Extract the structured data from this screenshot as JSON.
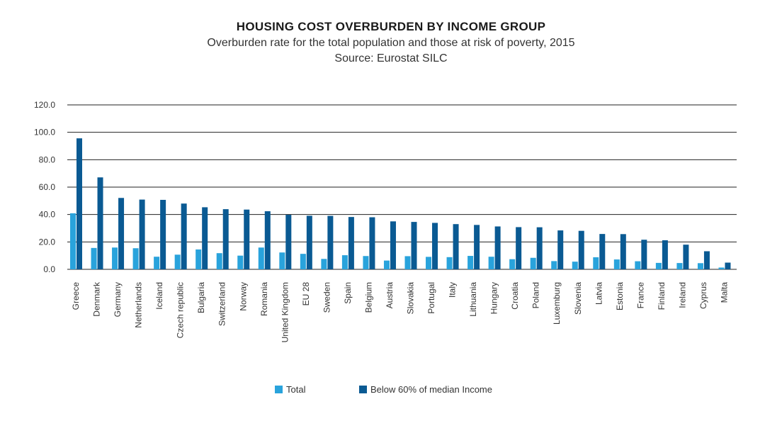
{
  "chart_data": {
    "type": "bar",
    "title": "HOUSING COST OVERBURDEN BY INCOME GROUP",
    "subtitle": "Overburden rate for the total population and those at risk of poverty, 2015",
    "source": "Source: Eurostat SILC",
    "categories": [
      "Greece",
      "Denmark",
      "Germany",
      "Netherlands",
      "Iceland",
      "Czech republic",
      "Bulgaria",
      "Switzerland",
      "Norway",
      "Romania",
      "United Kingdom",
      "EU 28",
      "Sweden",
      "Spain",
      "Belgium",
      "Austria",
      "Slovakia",
      "Portugal",
      "Italy",
      "Lithuania",
      "Hungary",
      "Croatia",
      "Poland",
      "Luxemburg",
      "Slovenia",
      "Latvia",
      "Estonia",
      "France",
      "Finland",
      "Ireland",
      "Cyprus",
      "Malta"
    ],
    "series": [
      {
        "name": "Total",
        "color": "#29a3dc",
        "values": [
          40.9,
          15.6,
          15.9,
          15.4,
          9.2,
          10.7,
          14.5,
          11.8,
          10.0,
          15.9,
          12.3,
          11.3,
          7.6,
          10.3,
          9.7,
          6.4,
          9.6,
          9.1,
          8.9,
          9.8,
          9.2,
          7.4,
          8.4,
          6.0,
          5.6,
          8.8,
          7.2,
          5.9,
          4.7,
          4.6,
          4.5,
          1.3
        ]
      },
      {
        "name": "Below 60% of median Income",
        "color": "#0a5a93",
        "values": [
          95.6,
          67.1,
          52.1,
          50.9,
          50.7,
          48.0,
          45.3,
          43.9,
          43.6,
          42.4,
          39.8,
          39.1,
          39.0,
          38.2,
          38.0,
          35.0,
          34.6,
          33.9,
          33.0,
          32.4,
          31.3,
          30.8,
          30.7,
          28.4,
          28.1,
          25.8,
          25.7,
          21.6,
          21.2,
          18.0,
          13.2,
          4.9
        ]
      }
    ],
    "yticks": [
      "120.0",
      "100.0",
      "80.0",
      "60.0",
      "40.0",
      "20.0",
      "0.0"
    ],
    "ylim": [
      0,
      120
    ],
    "grid": true,
    "legend_position": "bottom"
  }
}
